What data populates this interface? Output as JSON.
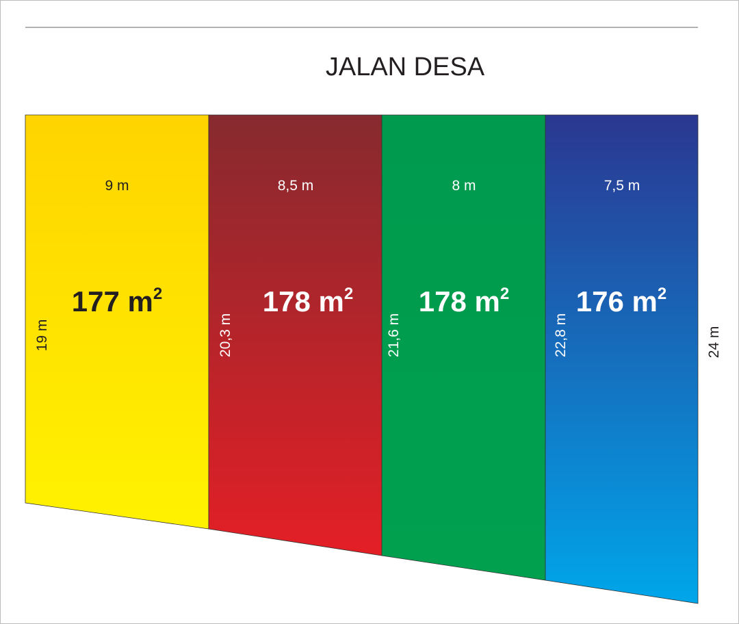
{
  "title": "JALAN DESA",
  "plots": [
    {
      "width": "9 m",
      "area": "177 m",
      "area_exponent": "2",
      "side": "19 m"
    },
    {
      "width": "8,5 m",
      "area": "178 m",
      "area_exponent": "2",
      "side": "20,3 m"
    },
    {
      "width": "8 m",
      "area": "178 m",
      "area_exponent": "2",
      "side": "21,6 m"
    },
    {
      "width": "7,5 m",
      "area": "176 m",
      "area_exponent": "2",
      "side": "22,8 m"
    }
  ],
  "right_side": "24 m"
}
